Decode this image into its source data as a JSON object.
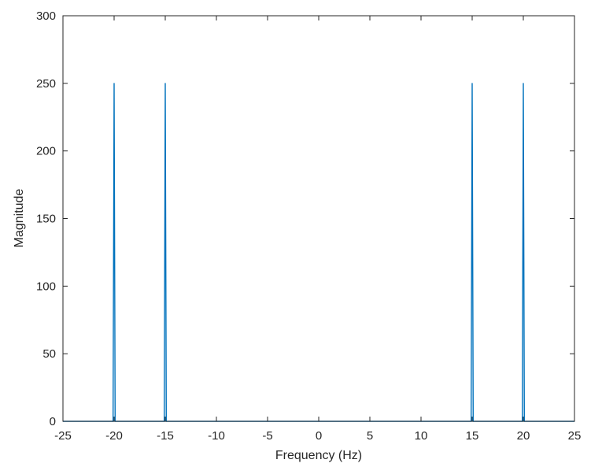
{
  "chart_data": {
    "type": "line",
    "title": "",
    "xlabel": "Frequency (Hz)",
    "ylabel": "Magnitude",
    "xlim": [
      -25,
      25
    ],
    "ylim": [
      0,
      300
    ],
    "xticks": [
      -25,
      -20,
      -15,
      -10,
      -5,
      0,
      5,
      10,
      15,
      20,
      25
    ],
    "yticks": [
      0,
      50,
      100,
      150,
      200,
      250,
      300
    ],
    "grid": false,
    "legend": "none",
    "series": [
      {
        "color": "#0072BD",
        "x": [
          -25,
          -20.1,
          -20,
          -19.9,
          -15.1,
          -15,
          -14.9,
          14.9,
          15,
          15.1,
          19.9,
          20,
          20.1,
          25
        ],
        "y": [
          0,
          0,
          250,
          0,
          0,
          250,
          0,
          0,
          250,
          0,
          0,
          250,
          0,
          0
        ]
      }
    ]
  }
}
